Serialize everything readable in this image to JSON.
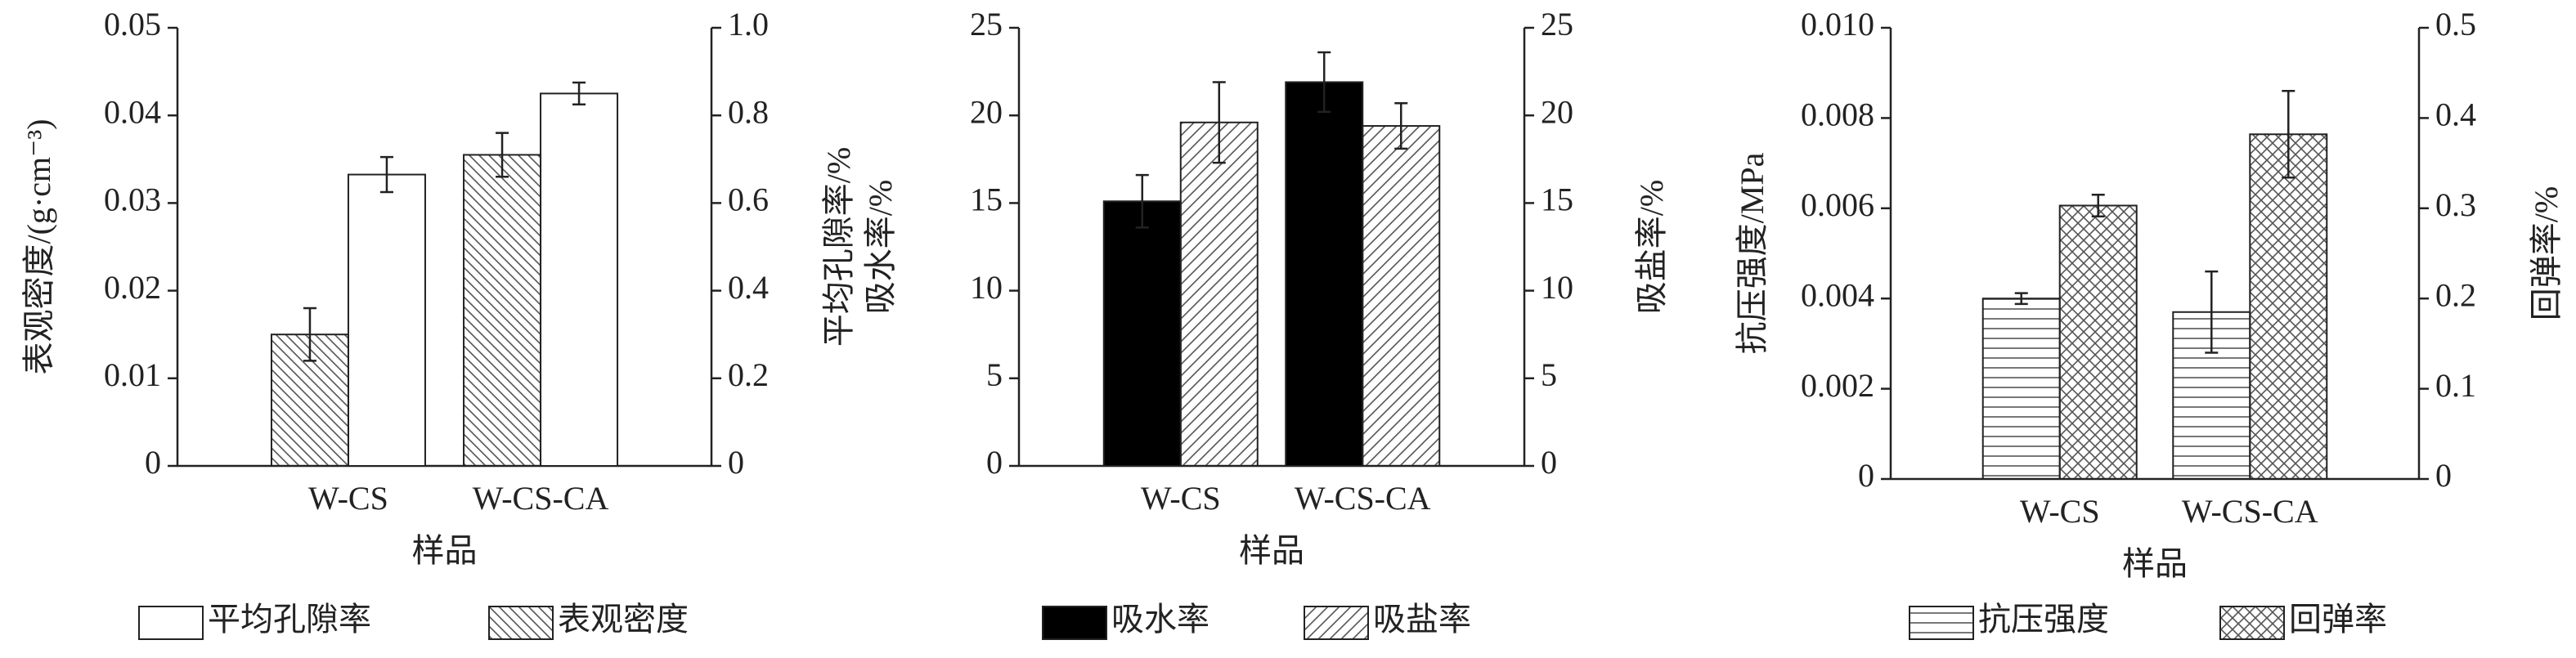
{
  "chart_data": [
    {
      "type": "bar",
      "categories": [
        "W-CS",
        "W-CS-CA"
      ],
      "xlabel": "样品",
      "ylabel": "表观密度/(g·cm⁻³)",
      "y2label": "平均孔隙率/%",
      "ylim": [
        0,
        0.05
      ],
      "yticks": [
        0,
        0.01,
        0.02,
        0.03,
        0.04,
        0.05
      ],
      "y2lim": [
        0,
        1
      ],
      "y2ticks": [
        0,
        0.2,
        0.4,
        0.6,
        0.8,
        {
          "value": 1,
          "label": "1.0"
        }
      ],
      "series": [
        {
          "name": "平均孔隙率",
          "color": "#ffffff",
          "pattern": "none",
          "axis": "y2",
          "values": [
            0.665,
            0.85
          ],
          "errors": [
            0.04,
            0.025
          ]
        },
        {
          "name": "表观密度",
          "color": "#ffffff",
          "pattern": "backslash",
          "axis": "y",
          "values": [
            0.015,
            0.0355
          ],
          "errors": [
            0.003,
            0.0025
          ]
        }
      ]
    },
    {
      "type": "bar",
      "categories": [
        "W-CS",
        "W-CS-CA"
      ],
      "xlabel": "样品",
      "ylabel": "吸水率/%",
      "y2label": "吸盐率/%",
      "ylim": [
        0,
        25
      ],
      "yticks": [
        0,
        5,
        10,
        15,
        20,
        25
      ],
      "y2lim": [
        0,
        25
      ],
      "y2ticks": [
        0,
        5,
        10,
        15,
        20,
        25
      ],
      "series": [
        {
          "name": "吸水率",
          "color": "#000000",
          "pattern": "none",
          "axis": "y",
          "values": [
            15.1,
            21.9
          ],
          "errors": [
            1.5,
            1.7
          ]
        },
        {
          "name": "吸盐率",
          "color": "#ffffff",
          "pattern": "slash",
          "axis": "y2",
          "values": [
            19.6,
            19.4
          ],
          "errors": [
            2.3,
            1.3
          ]
        }
      ]
    },
    {
      "type": "bar",
      "categories": [
        "W-CS",
        "W-CS-CA"
      ],
      "xlabel": "样品",
      "ylabel": "抗压强度/MPa",
      "y2label": "回弹率/%",
      "ylim": [
        0,
        0.01
      ],
      "yticks": [
        0,
        0.002,
        0.004,
        0.006,
        0.008,
        {
          "value": 0.01,
          "label": "0.010"
        }
      ],
      "y2lim": [
        0,
        0.5
      ],
      "y2ticks": [
        0,
        0.1,
        0.2,
        0.3,
        0.4,
        0.5
      ],
      "series": [
        {
          "name": "抗压强度",
          "color": "#ffffff",
          "pattern": "horizontal",
          "axis": "y",
          "values": [
            0.004,
            0.0037
          ],
          "errors": [
            0.00012,
            0.0009
          ]
        },
        {
          "name": "回弹率",
          "color": "#ffffff",
          "pattern": "cross",
          "axis": "y2",
          "values": [
            0.303,
            0.382
          ],
          "errors": [
            0.012,
            0.048
          ]
        }
      ]
    }
  ]
}
